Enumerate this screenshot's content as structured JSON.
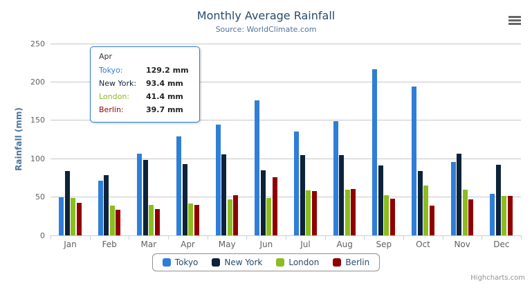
{
  "header": {
    "title": "Monthly Average Rainfall",
    "subtitle": "Source: WorldClimate.com"
  },
  "chart_data": {
    "type": "bar",
    "title": "Monthly Average Rainfall",
    "subtitle": "Source: WorldClimate.com",
    "categories": [
      "Jan",
      "Feb",
      "Mar",
      "Apr",
      "May",
      "Jun",
      "Jul",
      "Aug",
      "Sep",
      "Oct",
      "Nov",
      "Dec"
    ],
    "series": [
      {
        "name": "Tokyo",
        "color": "#2f7ed8",
        "values": [
          49.9,
          71.5,
          106.4,
          129.2,
          144.0,
          176.0,
          135.6,
          148.5,
          216.4,
          194.1,
          95.6,
          54.4
        ]
      },
      {
        "name": "New York",
        "color": "#0d233a",
        "values": [
          83.6,
          78.8,
          98.5,
          93.4,
          106.0,
          84.5,
          105.0,
          104.3,
          91.2,
          83.5,
          106.6,
          92.3
        ]
      },
      {
        "name": "London",
        "color": "#8bbc21",
        "values": [
          48.9,
          38.8,
          39.3,
          41.4,
          47.0,
          48.3,
          59.0,
          59.6,
          52.4,
          65.2,
          59.3,
          51.2
        ]
      },
      {
        "name": "Berlin",
        "color": "#910000",
        "values": [
          42.4,
          33.2,
          34.5,
          39.7,
          52.6,
          75.5,
          57.4,
          60.4,
          47.6,
          39.1,
          46.8,
          51.1
        ]
      }
    ],
    "xlabel": "",
    "ylabel": "Rainfall (mm)",
    "ylim": [
      0,
      250
    ],
    "yticks": [
      0,
      50,
      100,
      150,
      200,
      250
    ],
    "grid": true,
    "legend_position": "bottom-center"
  },
  "tooltip": {
    "header": "Apr",
    "rows": [
      {
        "label": "Tokyo:",
        "value": "129.2 mm",
        "color": "#2f7ed8"
      },
      {
        "label": "New York:",
        "value": "93.4 mm",
        "color": "#0d233a"
      },
      {
        "label": "London:",
        "value": "41.4 mm",
        "color": "#8bbc21"
      },
      {
        "label": "Berlin:",
        "value": "39.7 mm",
        "color": "#910000"
      }
    ]
  },
  "credit": {
    "label": "Highcharts.com"
  }
}
